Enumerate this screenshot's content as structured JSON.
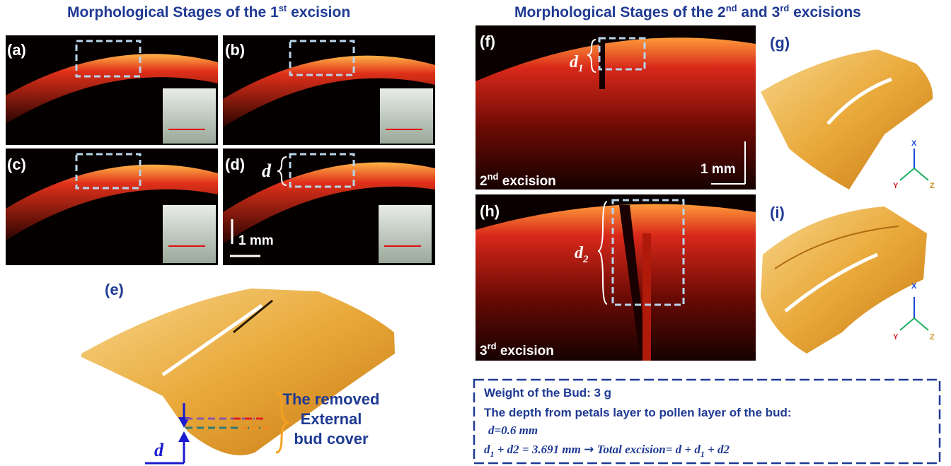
{
  "left_title": [
    "Morphological Stages of the 1",
    "st",
    " excision"
  ],
  "right_title": [
    "Morphological Stages of the 2",
    "nd",
    " and 3",
    "rd",
    " excisions"
  ],
  "panel_labels": [
    "(a)",
    "(b)",
    "(c)",
    "(d)",
    "(e)",
    "(f)",
    "(g)",
    "(h)",
    "(i)"
  ],
  "scale_bars": [
    "1 mm",
    "1 mm"
  ],
  "excision_2": [
    "2",
    "nd",
    " excision"
  ],
  "excision_3": [
    "3",
    "rd",
    " excision"
  ],
  "depth_d_panel": "d",
  "depth_d1": [
    "d",
    "1"
  ],
  "depth_d2": [
    "d",
    "2"
  ],
  "depth_d_3d": "d",
  "removed_cover": [
    "The removed",
    "External",
    "bud cover"
  ],
  "axes_g": [
    "X",
    "Y",
    "Z"
  ],
  "axes_i": [
    "X",
    "Y",
    "Z"
  ],
  "info_box": {
    "line1": "Weight of the Bud: 3 g",
    "line2": "The depth from petals layer to pollen layer of the bud:",
    "line3": "d=0.6 mm",
    "line4": [
      "d",
      "1",
      " + d2 = 3.691 mm ",
      "→",
      " Total excision= d + d",
      "1",
      " + d2"
    ]
  }
}
